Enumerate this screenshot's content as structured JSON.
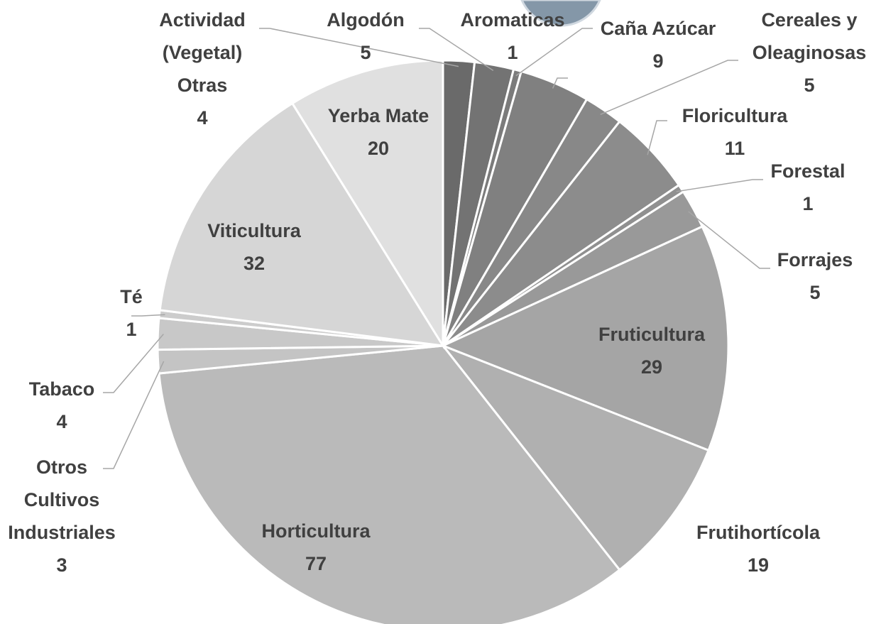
{
  "chart_data": {
    "type": "pie",
    "categories": [
      "Actividad (Vegetal) Otras",
      "Algodón",
      "Aromaticas",
      "Caña Azúcar",
      "Cereales y Oleaginosas",
      "Floricultura",
      "Forestal",
      "Forrajes",
      "Fruticultura",
      "Frutihortícola",
      "Horticultura",
      "Otros Cultivos Industriales",
      "Tabaco",
      "Té",
      "Viticultura",
      "Yerba Mate"
    ],
    "values": [
      4,
      5,
      1,
      9,
      5,
      11,
      1,
      5,
      29,
      19,
      77,
      3,
      4,
      1,
      32,
      20
    ],
    "colors": [
      "#6a6a6a",
      "#737373",
      "#7b7b7b",
      "#808080",
      "#888888",
      "#8c8c8c",
      "#909090",
      "#999999",
      "#a5a5a5",
      "#b0b0b0",
      "#bababa",
      "#c4c4c4",
      "#c8c8c8",
      "#cccccc",
      "#d6d6d6",
      "#e0e0e0"
    ]
  }
}
